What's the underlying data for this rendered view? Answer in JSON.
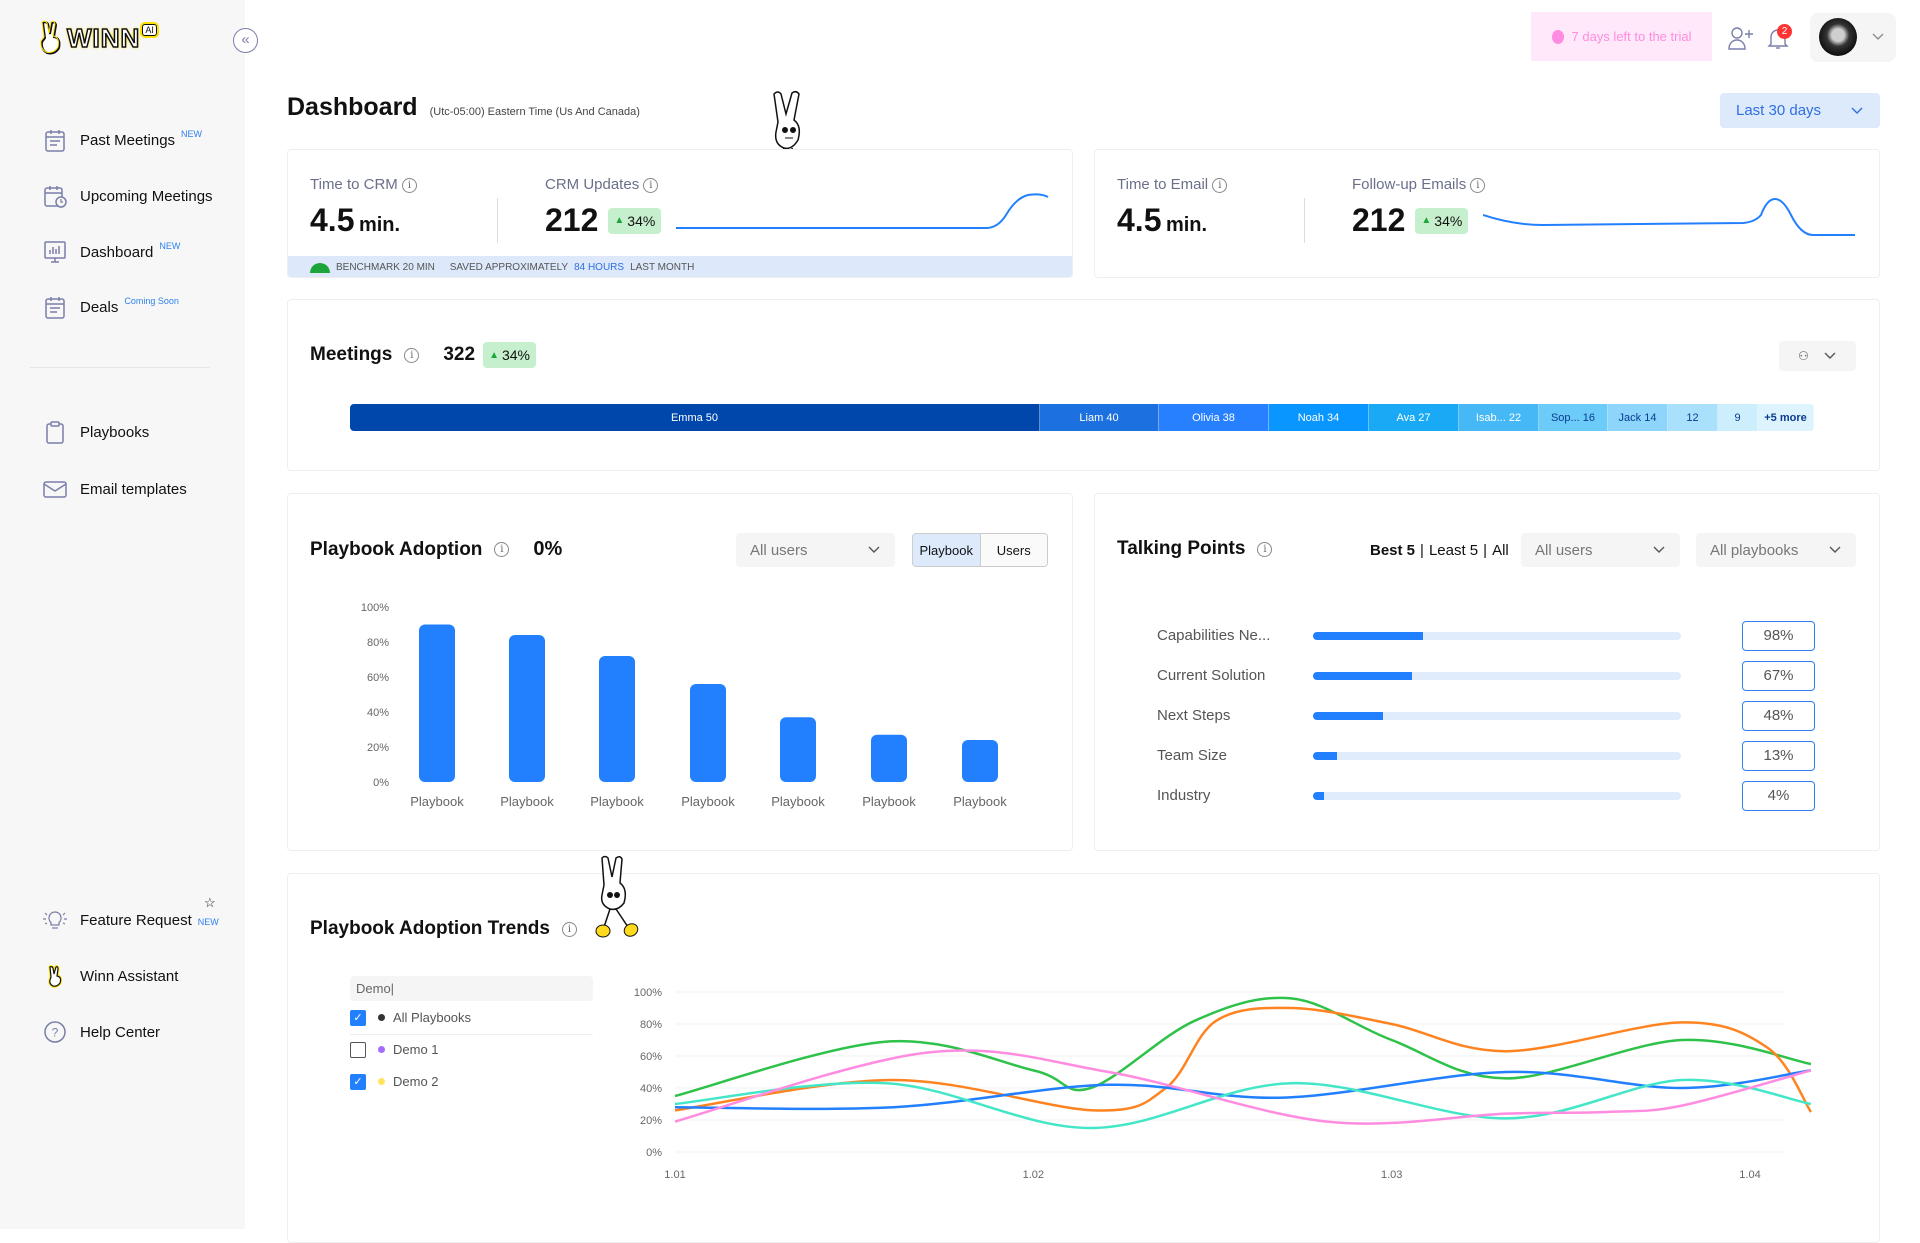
{
  "brand": {
    "logo_text": "WINN",
    "logo_suffix": "AI"
  },
  "sidebar": {
    "items": [
      {
        "label": "Past Meetings",
        "tag": "NEW"
      },
      {
        "label": "Upcoming Meetings"
      },
      {
        "label": "Dashboard",
        "tag": "NEW"
      },
      {
        "label": "Deals",
        "tag": "Coming Soon"
      },
      {
        "label": "Playbooks"
      },
      {
        "label": "Email templates"
      },
      {
        "label": "Feature Request",
        "tag": "NEW"
      },
      {
        "label": "Winn Assistant"
      },
      {
        "label": "Help Center"
      }
    ]
  },
  "header": {
    "trial": "7 days left to the trial",
    "notifications": "2"
  },
  "page": {
    "title": "Dashboard",
    "timezone": "(Utc-05:00) Eastern Time (Us And Canada)",
    "range": "Last 30 days"
  },
  "crm": {
    "time_label": "Time to CRM",
    "time_value": "4.5",
    "time_unit": "min.",
    "updates_label": "CRM Updates",
    "updates_value": "212",
    "updates_change": "34%",
    "benchmark": "BENCHMARK 20 MIN",
    "saved_pre": "SAVED APPROXIMATELY",
    "saved_hours": "84 HOURS",
    "saved_post": "LAST MONTH"
  },
  "email": {
    "time_label": "Time to Email",
    "time_value": "4.5",
    "time_unit": "min.",
    "followup_label": "Follow-up Emails",
    "followup_value": "212",
    "followup_change": "34%"
  },
  "meetings": {
    "title": "Meetings",
    "total": "322",
    "change": "34%",
    "segments": [
      "Emma 50",
      "Liam 40",
      "Olivia 38",
      "Noah 34",
      "Ava 27",
      "Isab... 22",
      "Sop... 16",
      "Jack 14",
      "12",
      "9",
      "+5 more"
    ]
  },
  "adoption": {
    "title": "Playbook Adoption",
    "value": "0%",
    "filter": "All users",
    "toggle": [
      "Playbook",
      "Users"
    ],
    "active_toggle": "Playbook"
  },
  "talking": {
    "title": "Talking Points",
    "best": "Best 5",
    "least": "Least 5",
    "all": "All",
    "sep": "|",
    "users": "All users",
    "playbooks": "All playbooks",
    "rows": [
      {
        "label": "Capabilities Ne...",
        "pct": "98%",
        "fill": 0.3
      },
      {
        "label": "Current Solution",
        "pct": "67%",
        "fill": 0.27
      },
      {
        "label": "Next Steps",
        "pct": "48%",
        "fill": 0.19
      },
      {
        "label": "Team Size",
        "pct": "13%",
        "fill": 0.065
      },
      {
        "label": "Industry",
        "pct": "4%",
        "fill": 0.03
      }
    ]
  },
  "trends": {
    "title": "Playbook Adoption Trends",
    "search": "Demo|",
    "filters": [
      {
        "label": "All Playbooks",
        "checked": true,
        "color": "#333333"
      },
      {
        "label": "Demo 1",
        "checked": false,
        "color": "#a66cff"
      },
      {
        "label": "Demo 2",
        "checked": true,
        "color": "#ffe45c"
      }
    ]
  },
  "chart_data": [
    {
      "type": "bar",
      "title": "Playbook Adoption",
      "categories": [
        "Playbook",
        "Playbook",
        "Playbook",
        "Playbook",
        "Playbook",
        "Playbook",
        "Playbook"
      ],
      "values": [
        90,
        84,
        72,
        56,
        37,
        27,
        24
      ],
      "ylim": [
        0,
        100
      ],
      "yticks": [
        "0%",
        "20%",
        "40%",
        "60%",
        "80%",
        "100%"
      ],
      "color": "#2280ff"
    },
    {
      "type": "line",
      "title": "Playbook Adoption Trends",
      "ylim": [
        0,
        100
      ],
      "xlim": [
        1.01,
        1.0417
      ],
      "xticks": [
        "1.01",
        "1.02",
        "1.03",
        "1.04"
      ],
      "yticks": [
        "0%",
        "20%",
        "40%",
        "60%",
        "80%",
        "100%"
      ],
      "series": [
        {
          "color": "#2ec24a",
          "points": [
            [
              1.01,
              35
            ],
            [
              1.0159,
              69
            ],
            [
              1.02,
              51
            ],
            [
              1.0216,
              40
            ],
            [
              1.0245,
              82
            ],
            [
              1.0272,
              96
            ],
            [
              1.03,
              70
            ],
            [
              1.0332,
              46
            ],
            [
              1.0381,
              70
            ],
            [
              1.0417,
              55
            ]
          ]
        },
        {
          "color": "#ff8421",
          "points": [
            [
              1.01,
              26
            ],
            [
              1.0161,
              45
            ],
            [
              1.0217,
              26
            ],
            [
              1.0237,
              40
            ],
            [
              1.0251,
              82
            ],
            [
              1.0272,
              90
            ],
            [
              1.03,
              80
            ],
            [
              1.0332,
              63
            ],
            [
              1.0381,
              81
            ],
            [
              1.0405,
              65
            ],
            [
              1.0417,
              25
            ]
          ]
        },
        {
          "color": "#2280ff",
          "points": [
            [
              1.01,
              28
            ],
            [
              1.0161,
              28
            ],
            [
              1.0221,
              42
            ],
            [
              1.027,
              34
            ],
            [
              1.0332,
              50
            ],
            [
              1.0381,
              40
            ],
            [
              1.0417,
              51
            ]
          ]
        },
        {
          "color": "#44e6c8",
          "points": [
            [
              1.01,
              30
            ],
            [
              1.0159,
              43
            ],
            [
              1.0216,
              15
            ],
            [
              1.0272,
              43
            ],
            [
              1.0332,
              21
            ],
            [
              1.0381,
              45
            ],
            [
              1.0417,
              30
            ]
          ]
        },
        {
          "color": "#ff8ce0",
          "points": [
            [
              1.01,
              19
            ],
            [
              1.017,
              62
            ],
            [
              1.0221,
              50
            ],
            [
              1.0282,
              19
            ],
            [
              1.0332,
              24
            ],
            [
              1.036,
              25
            ],
            [
              1.0381,
              29
            ],
            [
              1.0417,
              51
            ]
          ]
        }
      ]
    }
  ]
}
